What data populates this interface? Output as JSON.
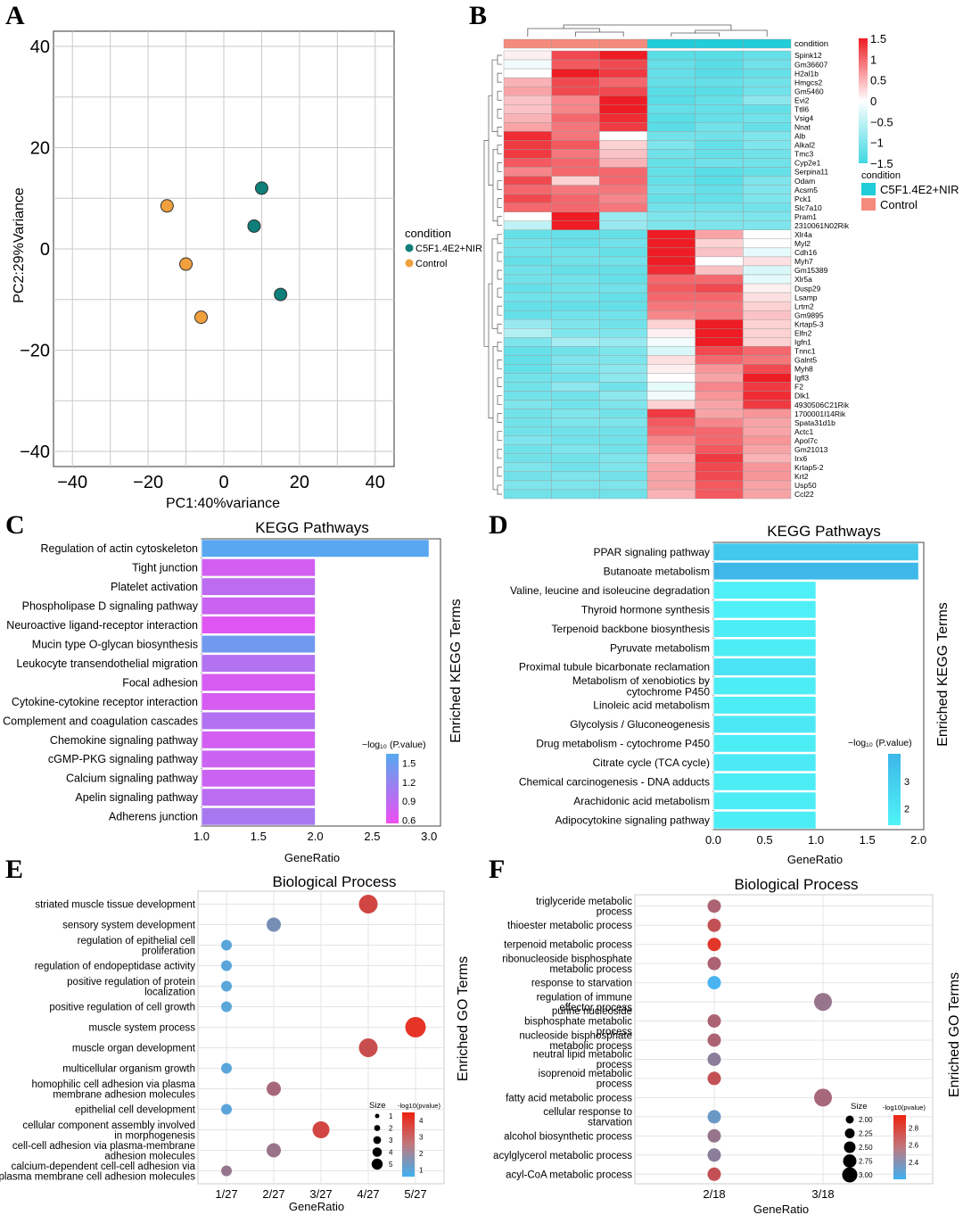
{
  "colors": {
    "teal": "#0f7f7a",
    "orange": "#f0a03c",
    "hm_high": "#ee1c24",
    "hm_low": "#3fd8e2",
    "hm_mid": "#ffffff",
    "cond_nir": "#21cdd8",
    "cond_ctrl": "#f48a7c",
    "bar_c_low": "#ee4ef2",
    "bar_c_high": "#55aaf0",
    "bar_d_low": "#4ff4f8",
    "bar_d_high": "#3db6e8",
    "dot_low": "#3fb0f0",
    "dot_high": "#ee2210"
  },
  "panels": {
    "a": {
      "letter": "A",
      "legend_title": "condition",
      "legend_items": [
        "C5F1.4E2+NIR",
        "Control"
      ]
    },
    "b": {
      "letter": "B",
      "track_label": "condition",
      "scale_ticks": [
        "1.5",
        "1",
        "0.5",
        "0",
        "−0.5",
        "−1",
        "−1.5"
      ],
      "legend_title": "condition",
      "legend_items": [
        "C5F1.4E2+NIR",
        "Control"
      ]
    },
    "c": {
      "letter": "C",
      "legend_title": "−log₁₀ (P.value)",
      "legend_ticks": [
        "1.5",
        "1.2",
        "0.9",
        "0.6"
      ]
    },
    "d": {
      "letter": "D",
      "legend_title": "−log₁₀ (P.value)",
      "legend_ticks": [
        "3",
        "2"
      ]
    },
    "e": {
      "letter": "E",
      "size_title": "Size",
      "size_items": [
        "1",
        "2",
        "3",
        "4",
        "5"
      ],
      "color_title": "-log10(pvalue)",
      "color_ticks": [
        "4",
        "3",
        "2",
        "1"
      ]
    },
    "f": {
      "letter": "F",
      "size_title": "Size",
      "size_items": [
        "2.00",
        "2.25",
        "2.50",
        "2.75",
        "3.00"
      ],
      "color_title": "-log10(pvalue)",
      "color_ticks": [
        "2.8",
        "2.6",
        "2.4"
      ]
    }
  },
  "chart_data": [
    {
      "id": "A",
      "type": "scatter",
      "title": "",
      "xlabel": "PC1:40%variance",
      "ylabel": "PC2:29%Variance",
      "xlim": [
        -45,
        45
      ],
      "ylim": [
        -43,
        43
      ],
      "xticks": [
        -40,
        -20,
        0,
        20,
        40
      ],
      "yticks": [
        40,
        20,
        0,
        -20,
        -40
      ],
      "x_tick_labels": [
        "−40",
        "−20",
        "0",
        "20",
        "40"
      ],
      "y_tick_labels": [
        "40",
        "20",
        "0",
        "−20",
        "−40"
      ],
      "series": [
        {
          "name": "C5F1.4E2+NIR",
          "points": [
            [
              10,
              12
            ],
            [
              8,
              4.5
            ],
            [
              15,
              -9
            ]
          ]
        },
        {
          "name": "Control",
          "points": [
            [
              -15,
              8.5
            ],
            [
              -10,
              -3
            ],
            [
              -6,
              -13.5
            ]
          ]
        }
      ]
    },
    {
      "id": "B",
      "type": "heatmap",
      "columns": [
        "Control",
        "Control",
        "Control",
        "C5F1.4E2+NIR",
        "C5F1.4E2+NIR",
        "C5F1.4E2+NIR"
      ],
      "genes": [
        "Spink12",
        "Gm36607",
        "H2al1b",
        "Hmgcs2",
        "Gm5460",
        "Evi2",
        "Ttll6",
        "Vsig4",
        "Nnat",
        "Alb",
        "Alkal2",
        "Tmc3",
        "Cyp2e1",
        "Serpina11",
        "Odam",
        "Acsm5",
        "Pck1",
        "Slc7a10",
        "Pram1",
        "2310061N02Rik",
        "Xlr4a",
        "Myl2",
        "Cdh16",
        "Myh7",
        "Gm15389",
        "Xlr5a",
        "Dusp29",
        "Lsamp",
        "Lrtm2",
        "Gm9895",
        "Krtap5-3",
        "Elfn2",
        "Igfn1",
        "Tnnc1",
        "Galnt5",
        "Myh8",
        "Igfl3",
        "F2",
        "Dlk1",
        "4930506C21Rik",
        "1700001I14Rik",
        "Spata31d1b",
        "Actc1",
        "Apol7c",
        "Gm21013",
        "Irx6",
        "Krtap5-2",
        "Krt2",
        "Usp50",
        "Ccl22"
      ],
      "values": [
        [
          0.1,
          1.2,
          1.5,
          -1.3,
          -1.3,
          -1.2
        ],
        [
          -0.1,
          1.1,
          1.2,
          -1.2,
          -1.3,
          -1.1
        ],
        [
          0.0,
          1.5,
          1.3,
          -1.2,
          -1.3,
          -1.2
        ],
        [
          0.5,
          1.2,
          1.0,
          -1.2,
          -1.2,
          -1.1
        ],
        [
          0.6,
          1.2,
          1.2,
          -1.3,
          -1.3,
          -1.1
        ],
        [
          0.4,
          0.8,
          1.5,
          -1.3,
          -1.2,
          -0.9
        ],
        [
          0.4,
          0.8,
          1.5,
          -1.2,
          -1.2,
          -1.2
        ],
        [
          0.5,
          1.0,
          1.4,
          -1.3,
          -1.2,
          -1.1
        ],
        [
          0.6,
          0.9,
          1.3,
          -1.3,
          -1.1,
          -1.2
        ],
        [
          1.4,
          0.9,
          0.0,
          -1.1,
          -1.1,
          -1.0
        ],
        [
          1.3,
          1.1,
          0.3,
          -1.0,
          -1.2,
          -1.0
        ],
        [
          1.3,
          0.9,
          0.4,
          -1.1,
          -1.2,
          -1.1
        ],
        [
          1.1,
          1.0,
          0.5,
          -1.2,
          -1.1,
          -1.1
        ],
        [
          0.8,
          1.0,
          1.0,
          -1.2,
          -1.3,
          -1.2
        ],
        [
          1.2,
          0.3,
          1.0,
          -1.2,
          -1.3,
          -1.0
        ],
        [
          1.0,
          0.9,
          0.9,
          -1.1,
          -1.2,
          -1.0
        ],
        [
          1.2,
          1.0,
          0.8,
          -1.2,
          -1.2,
          -1.0
        ],
        [
          1.0,
          1.0,
          0.9,
          -1.1,
          -1.1,
          -1.1
        ],
        [
          0.0,
          1.6,
          -0.8,
          -1.0,
          -1.0,
          -1.0
        ],
        [
          -0.5,
          1.5,
          -0.8,
          -1.0,
          -1.0,
          -1.0
        ],
        [
          -1.2,
          -1.2,
          -1.2,
          1.5,
          0.6,
          0.0
        ],
        [
          -1.1,
          -1.2,
          -1.1,
          1.5,
          0.3,
          0.0
        ],
        [
          -1.1,
          -1.1,
          -1.2,
          1.5,
          0.4,
          -0.2
        ],
        [
          -1.2,
          -1.1,
          -1.1,
          1.5,
          0.0,
          0.2
        ],
        [
          -1.1,
          -1.2,
          -1.2,
          1.4,
          0.4,
          -0.3
        ],
        [
          -1.1,
          -1.1,
          -1.2,
          1.0,
          1.0,
          -0.2
        ],
        [
          -1.2,
          -1.1,
          -1.1,
          1.1,
          1.2,
          0.1
        ],
        [
          -1.1,
          -1.1,
          -1.2,
          1.0,
          1.0,
          0.2
        ],
        [
          -1.2,
          -1.2,
          -1.2,
          0.9,
          0.9,
          0.3
        ],
        [
          -1.2,
          -1.1,
          -1.1,
          0.8,
          0.9,
          0.4
        ],
        [
          -0.8,
          -1.0,
          -1.1,
          0.3,
          1.5,
          0.3
        ],
        [
          -0.6,
          -1.0,
          -1.0,
          0.1,
          1.5,
          0.3
        ],
        [
          -1.0,
          -0.7,
          -0.8,
          -0.1,
          1.5,
          0.3
        ],
        [
          -1.2,
          -1.1,
          -1.0,
          -0.3,
          1.2,
          1.0
        ],
        [
          -1.2,
          -1.0,
          -1.0,
          0.2,
          1.0,
          0.9
        ],
        [
          -1.2,
          -1.0,
          -0.9,
          0.1,
          0.7,
          1.2
        ],
        [
          -1.1,
          -1.1,
          -0.9,
          0.0,
          0.6,
          1.5
        ],
        [
          -1.1,
          -0.9,
          -1.1,
          -0.2,
          0.8,
          1.3
        ],
        [
          -1.1,
          -1.1,
          -0.9,
          -0.1,
          0.7,
          1.4
        ],
        [
          -1.0,
          -1.1,
          -1.0,
          0.3,
          0.6,
          1.3
        ],
        [
          -1.1,
          -1.0,
          -1.1,
          1.3,
          0.6,
          0.7
        ],
        [
          -1.1,
          -1.0,
          -1.0,
          1.1,
          0.8,
          0.6
        ],
        [
          -1.1,
          -1.1,
          -1.1,
          1.0,
          1.0,
          0.6
        ],
        [
          -1.0,
          -1.1,
          -1.1,
          0.8,
          1.0,
          0.7
        ],
        [
          -1.1,
          -1.0,
          -1.1,
          0.7,
          1.1,
          0.6
        ],
        [
          -1.1,
          -1.1,
          -1.0,
          0.5,
          1.3,
          0.5
        ],
        [
          -1.0,
          -1.1,
          -1.0,
          0.6,
          1.2,
          0.7
        ],
        [
          -1.1,
          -1.0,
          -1.1,
          0.6,
          1.2,
          0.7
        ],
        [
          -1.0,
          -1.0,
          -1.0,
          0.6,
          1.1,
          0.6
        ],
        [
          -1.1,
          -1.1,
          -1.1,
          0.5,
          1.1,
          0.6
        ]
      ]
    },
    {
      "id": "C",
      "type": "bar",
      "orientation": "horizontal",
      "title": "KEGG Pathways",
      "xlabel": "GeneRatio",
      "ylabel": "Enriched KEGG Terms",
      "xlim": [
        1.0,
        3.1
      ],
      "xticks": [
        1.0,
        1.5,
        2.0,
        2.5,
        3.0
      ],
      "x_tick_labels": [
        "1.0",
        "1.5",
        "2.0",
        "2.5",
        "3.0"
      ],
      "categories": [
        "Regulation of actin cytoskeleton",
        "Tight junction",
        "Platelet activation",
        "Phospholipase D signaling pathway",
        "Neuroactive ligand-receptor interaction",
        "Mucin type O-glycan biosynthesis",
        "Leukocyte transendothelial migration",
        "Focal adhesion",
        "Cytokine-cytokine receptor interaction",
        "Complement and coagulation cascades",
        "Chemokine signaling pathway",
        "cGMP-PKG signaling pathway",
        "Calcium signaling pathway",
        "Apelin signaling pathway",
        "Adherens junction"
      ],
      "values": [
        3.0,
        2.0,
        2.0,
        2.0,
        2.0,
        2.0,
        2.0,
        2.0,
        2.0,
        2.0,
        2.0,
        2.0,
        2.0,
        2.0,
        2.0
      ],
      "color_values": [
        1.62,
        0.75,
        0.9,
        0.8,
        0.65,
        1.45,
        0.98,
        0.72,
        0.72,
        0.98,
        0.75,
        0.8,
        0.8,
        0.92,
        1.05
      ],
      "color_range": [
        0.55,
        1.65
      ]
    },
    {
      "id": "D",
      "type": "bar",
      "orientation": "horizontal",
      "title": "KEGG Pathways",
      "xlabel": "GeneRatio",
      "ylabel": "Enriched KEGG Terms",
      "xlim": [
        0.0,
        2.05
      ],
      "xticks": [
        0.0,
        0.5,
        1.0,
        1.5,
        2.0
      ],
      "x_tick_labels": [
        "0.0",
        "0.5",
        "1.0",
        "1.5",
        "2.0"
      ],
      "categories": [
        "PPAR signaling pathway",
        "Butanoate metabolism",
        "Valine, leucine and isoleucine degradation",
        "Thyroid hormone synthesis",
        "Terpenoid backbone biosynthesis",
        "Pyruvate metabolism",
        "Proximal tubule bicarbonate reclamation",
        "Metabolism of xenobiotics by\ncytochrome P450",
        "Linoleic acid metabolism",
        "Glycolysis / Gluconeogenesis",
        "Drug metabolism - cytochrome P450",
        "Citrate cycle (TCA cycle)",
        "Chemical carcinogenesis - DNA adducts",
        "Arachidonic acid metabolism",
        "Adipocytokine signaling pathway"
      ],
      "values": [
        2.0,
        2.0,
        1.0,
        1.0,
        1.0,
        1.0,
        1.0,
        1.0,
        1.0,
        1.0,
        1.0,
        1.0,
        1.0,
        1.0,
        1.0
      ],
      "color_values": [
        3.2,
        3.9,
        1.6,
        1.6,
        1.7,
        1.7,
        2.1,
        1.7,
        1.7,
        1.9,
        1.7,
        1.8,
        1.7,
        1.7,
        1.7
      ],
      "color_range": [
        1.4,
        4.0
      ]
    },
    {
      "id": "E",
      "type": "scatter",
      "subtype": "dot",
      "title": "Biological Process",
      "xlabel": "GeneRatio",
      "ylabel": "Enriched GO Terms",
      "categories_x": [
        "1/27",
        "2/27",
        "3/27",
        "4/27",
        "5/27"
      ],
      "terms": [
        "striated muscle tissue development",
        "sensory system development",
        "regulation of epithelial cell\nproliferation",
        "regulation of endopeptidase activity",
        "positive regulation of protein\nlocalization",
        "positive regulation of cell growth",
        "muscle system process",
        "muscle organ development",
        "multicellular organism growth",
        "homophilic cell adhesion via plasma\nmembrane adhesion molecules",
        "epithelial cell development",
        "cellular component assembly involved\nin morphogenesis",
        "cell-cell adhesion via plasma-membrane\nadhesion molecules",
        "calcium-dependent cell-cell adhesion via\nplasma membrane cell adhesion molecules"
      ],
      "gene_ratio": [
        4,
        2,
        1,
        1,
        1,
        1,
        5,
        4,
        1,
        2,
        1,
        3,
        2,
        1
      ],
      "size": [
        4,
        2,
        1,
        1,
        1,
        1,
        5,
        4,
        1,
        2,
        1,
        3,
        2,
        1
      ],
      "pvalue": [
        3.8,
        1.7,
        1.0,
        1.0,
        1.0,
        1.0,
        4.3,
        3.6,
        1.0,
        2.8,
        1.0,
        3.8,
        2.5,
        2.4
      ],
      "color_range": [
        0.6,
        4.5
      ]
    },
    {
      "id": "F",
      "type": "scatter",
      "subtype": "dot",
      "title": "Biological Process",
      "xlabel": "GeneRatio",
      "ylabel": "Enriched GO Terms",
      "categories_x": [
        "2/18",
        "3/18"
      ],
      "terms": [
        "triglyceride metabolic\nprocess",
        "thioester metabolic process",
        "terpenoid metabolic process",
        "ribonucleoside bisphosphate\nmetabolic process",
        "response to starvation",
        "regulation of immune\neffector process",
        "purine nucleoside\nbisphosphate metabolic\nprocess",
        "nucleoside bisphosphate\nmetabolic process",
        "neutral lipid metabolic\nprocess",
        "isoprenoid metabolic\nprocess",
        "fatty acid metabolic process",
        "cellular response to\nstarvation",
        "alcohol biosynthetic process",
        "acylglycerol metabolic process",
        "acyl-CoA metabolic process"
      ],
      "gene_ratio": [
        2,
        2,
        2,
        2,
        2,
        3,
        2,
        2,
        2,
        2,
        3,
        2,
        2,
        2,
        2
      ],
      "size": [
        2,
        2,
        2,
        2,
        2,
        3,
        2,
        2,
        2,
        2,
        3,
        2,
        2,
        2,
        2
      ],
      "pvalue": [
        2.65,
        2.75,
        2.9,
        2.65,
        2.2,
        2.55,
        2.65,
        2.65,
        2.5,
        2.75,
        2.62,
        2.35,
        2.55,
        2.5,
        2.75
      ],
      "color_range": [
        2.2,
        2.95
      ]
    }
  ]
}
